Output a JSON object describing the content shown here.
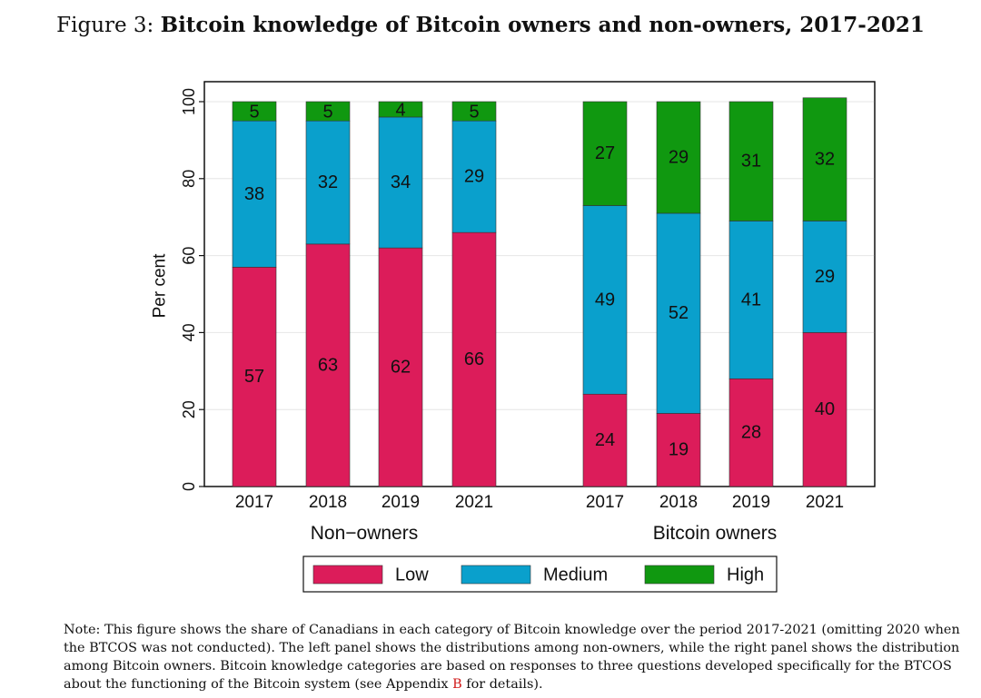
{
  "figure": {
    "prefix": "Figure 3:",
    "title": "Bitcoin knowledge of Bitcoin owners and non-owners, 2017-2021"
  },
  "chart_data": {
    "type": "bar",
    "stacked": true,
    "ylabel": "Per cent",
    "ylim": [
      0,
      100
    ],
    "yticks": [
      0,
      20,
      40,
      60,
      80,
      100
    ],
    "grid": true,
    "legend_position": "bottom",
    "groups": [
      {
        "name": "Non−owners",
        "categories": [
          "2017",
          "2018",
          "2019",
          "2021"
        ]
      },
      {
        "name": "Bitcoin owners",
        "categories": [
          "2017",
          "2018",
          "2019",
          "2021"
        ]
      }
    ],
    "series": [
      {
        "name": "Low",
        "color": "#dc1c5a",
        "values": [
          57,
          63,
          62,
          66,
          24,
          19,
          28,
          40
        ]
      },
      {
        "name": "Medium",
        "color": "#0aa0cc",
        "values": [
          38,
          32,
          34,
          29,
          49,
          52,
          41,
          29
        ]
      },
      {
        "name": "High",
        "color": "#109810",
        "values": [
          5,
          5,
          4,
          5,
          27,
          29,
          31,
          32
        ]
      }
    ]
  },
  "note": {
    "text_before": "Note: This figure shows the share of Canadians in each category of Bitcoin knowledge over the period 2017-2021 (omitting 2020 when the BTCOS was not conducted). The left panel shows the distributions among non-owners, while the right panel shows the distribution among Bitcoin owners. Bitcoin knowledge categories are based on responses to three questions developed specifically for the BTCOS about the functioning of the Bitcoin system (see Appendix ",
    "appendix_ref": "B",
    "text_after": " for details)."
  }
}
